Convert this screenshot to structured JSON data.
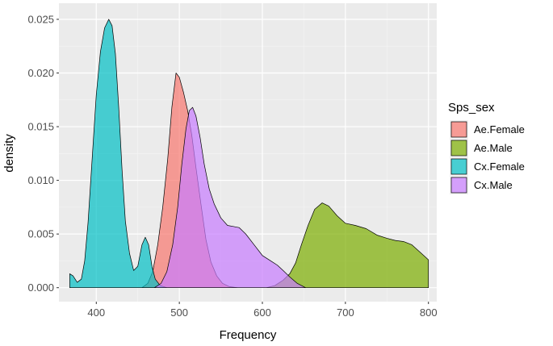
{
  "chart_data": {
    "type": "area",
    "subtype": "density",
    "xlabel": "Frequency",
    "ylabel": "density",
    "xlim": [
      355,
      810
    ],
    "ylim": [
      -0.0013,
      0.0265
    ],
    "x_ticks": [
      400,
      500,
      600,
      700,
      800
    ],
    "x_tick_labels": [
      "400",
      "500",
      "600",
      "700",
      "800"
    ],
    "y_ticks": [
      0.0,
      0.005,
      0.01,
      0.015,
      0.02,
      0.025
    ],
    "y_tick_labels": [
      "0.000",
      "0.005",
      "0.010",
      "0.015",
      "0.020",
      "0.025"
    ],
    "grid": true,
    "legend": {
      "title": "Sps_sex",
      "position": "right"
    },
    "series": [
      {
        "name": "Ae.Female",
        "color": "#F8766D",
        "points": [
          [
            455,
            0
          ],
          [
            462,
            0.0004
          ],
          [
            468,
            0.0015
          ],
          [
            474,
            0.004
          ],
          [
            480,
            0.0075
          ],
          [
            486,
            0.012
          ],
          [
            491,
            0.0168
          ],
          [
            496,
            0.02
          ],
          [
            500,
            0.0196
          ],
          [
            505,
            0.0182
          ],
          [
            510,
            0.0165
          ],
          [
            515,
            0.0142
          ],
          [
            520,
            0.0112
          ],
          [
            526,
            0.0078
          ],
          [
            532,
            0.0045
          ],
          [
            538,
            0.0024
          ],
          [
            545,
            0.0011
          ],
          [
            552,
            0.0004
          ],
          [
            560,
            0.0001
          ],
          [
            570,
            0
          ]
        ]
      },
      {
        "name": "Ae.Male",
        "color": "#7CAE00",
        "points": [
          [
            605,
            0
          ],
          [
            615,
            0.0002
          ],
          [
            625,
            0.0007
          ],
          [
            633,
            0.0013
          ],
          [
            640,
            0.0023
          ],
          [
            647,
            0.004
          ],
          [
            655,
            0.0058
          ],
          [
            663,
            0.0073
          ],
          [
            672,
            0.0079
          ],
          [
            680,
            0.0076
          ],
          [
            690,
            0.0067
          ],
          [
            700,
            0.006
          ],
          [
            712,
            0.0058
          ],
          [
            725,
            0.0055
          ],
          [
            738,
            0.0049
          ],
          [
            750,
            0.0046
          ],
          [
            760,
            0.0044
          ],
          [
            770,
            0.0043
          ],
          [
            780,
            0.004
          ],
          [
            790,
            0.0033
          ],
          [
            800,
            0.0026
          ],
          [
            800,
            0
          ]
        ]
      },
      {
        "name": "Cx.Female",
        "color": "#00BFC4",
        "points": [
          [
            368,
            0
          ],
          [
            368,
            0.0013
          ],
          [
            372,
            0.0011
          ],
          [
            377,
            0.0005
          ],
          [
            382,
            0.0008
          ],
          [
            386,
            0.0025
          ],
          [
            390,
            0.006
          ],
          [
            395,
            0.012
          ],
          [
            400,
            0.018
          ],
          [
            405,
            0.022
          ],
          [
            410,
            0.0242
          ],
          [
            415,
            0.025
          ],
          [
            419,
            0.0244
          ],
          [
            423,
            0.0218
          ],
          [
            427,
            0.0168
          ],
          [
            431,
            0.011
          ],
          [
            435,
            0.0062
          ],
          [
            440,
            0.0032
          ],
          [
            445,
            0.0016
          ],
          [
            450,
            0.002
          ],
          [
            455,
            0.004
          ],
          [
            459,
            0.0047
          ],
          [
            463,
            0.004
          ],
          [
            467,
            0.002
          ],
          [
            471,
            0.0008
          ],
          [
            477,
            0.0002
          ],
          [
            485,
            0
          ]
        ]
      },
      {
        "name": "Cx.Male",
        "color": "#C77CFF",
        "points": [
          [
            470,
            0
          ],
          [
            478,
            0.0004
          ],
          [
            485,
            0.0015
          ],
          [
            492,
            0.004
          ],
          [
            498,
            0.0075
          ],
          [
            503,
            0.0115
          ],
          [
            508,
            0.0148
          ],
          [
            512,
            0.0165
          ],
          [
            516,
            0.0168
          ],
          [
            520,
            0.016
          ],
          [
            525,
            0.014
          ],
          [
            530,
            0.0115
          ],
          [
            536,
            0.0092
          ],
          [
            542,
            0.0078
          ],
          [
            550,
            0.0065
          ],
          [
            558,
            0.0058
          ],
          [
            565,
            0.0057
          ],
          [
            572,
            0.0056
          ],
          [
            580,
            0.005
          ],
          [
            590,
            0.004
          ],
          [
            600,
            0.003
          ],
          [
            610,
            0.0025
          ],
          [
            618,
            0.0021
          ],
          [
            625,
            0.0016
          ],
          [
            633,
            0.001
          ],
          [
            642,
            0.0004
          ],
          [
            652,
            0
          ]
        ]
      }
    ]
  }
}
